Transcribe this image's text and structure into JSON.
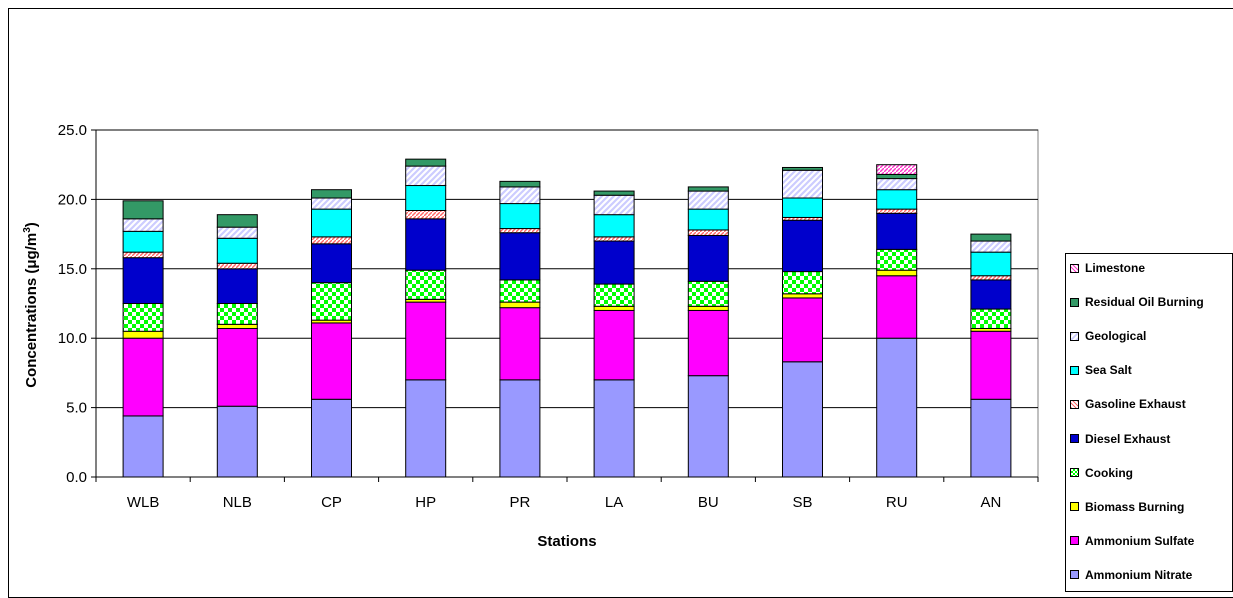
{
  "chart_data": {
    "type": "bar",
    "stacked": true,
    "xlabel": "Stations",
    "ylabel_main": "Concentrations (μg/m",
    "ylabel_sup": "3",
    "ylabel_close": ")",
    "ylim": [
      0,
      25
    ],
    "yticks": [
      "0.0",
      "5.0",
      "10.0",
      "15.0",
      "20.0",
      "25.0"
    ],
    "grid": true,
    "legend_position": "right",
    "categories": [
      "WLB",
      "NLB",
      "CP",
      "HP",
      "PR",
      "LA",
      "BU",
      "SB",
      "RU",
      "AN"
    ],
    "series": [
      {
        "name": "Ammonium Nitrate",
        "color": "#9999ff",
        "pattern": "solid",
        "values": [
          4.4,
          5.1,
          5.6,
          7.0,
          7.0,
          7.0,
          7.3,
          8.3,
          10.0,
          5.6
        ]
      },
      {
        "name": "Ammonium Sulfate",
        "color": "#ff00ff",
        "pattern": "solid",
        "values": [
          5.6,
          5.6,
          5.5,
          5.6,
          5.2,
          5.0,
          4.7,
          4.6,
          4.5,
          4.9
        ]
      },
      {
        "name": "Biomass Burning",
        "color": "#ffff00",
        "pattern": "solid",
        "values": [
          0.5,
          0.3,
          0.2,
          0.2,
          0.4,
          0.3,
          0.3,
          0.3,
          0.4,
          0.2
        ]
      },
      {
        "name": "Cooking",
        "color": "#00ff00",
        "pattern": "checker",
        "values": [
          2.0,
          1.5,
          2.7,
          2.1,
          1.6,
          1.6,
          1.8,
          1.6,
          1.5,
          1.4
        ]
      },
      {
        "name": "Diesel Exhaust",
        "color": "#0000cc",
        "pattern": "solid",
        "values": [
          3.3,
          2.5,
          2.8,
          3.7,
          3.4,
          3.1,
          3.3,
          3.7,
          2.6,
          2.1
        ]
      },
      {
        "name": "Gasoline Exhaust",
        "color": "#ff9999",
        "pattern": "diagonal",
        "values": [
          0.4,
          0.4,
          0.5,
          0.6,
          0.3,
          0.3,
          0.4,
          0.2,
          0.3,
          0.3
        ]
      },
      {
        "name": "Sea Salt",
        "color": "#00ffff",
        "pattern": "solid",
        "values": [
          1.5,
          1.8,
          2.0,
          1.8,
          1.8,
          1.6,
          1.5,
          1.4,
          1.4,
          1.7
        ]
      },
      {
        "name": "Geological",
        "color": "#ccccff",
        "pattern": "hatch",
        "values": [
          0.9,
          0.8,
          0.8,
          1.4,
          1.2,
          1.4,
          1.3,
          2.0,
          0.8,
          0.8
        ]
      },
      {
        "name": "Residual Oil  Burning",
        "color": "#339966",
        "pattern": "solid",
        "values": [
          1.3,
          0.9,
          0.6,
          0.5,
          0.4,
          0.3,
          0.3,
          0.2,
          0.3,
          0.5
        ]
      },
      {
        "name": "Limestone",
        "color": "#ff66cc",
        "pattern": "diagonal",
        "values": [
          0.0,
          0.0,
          0.0,
          0.0,
          0.0,
          0.0,
          0.0,
          0.0,
          0.7,
          0.0
        ]
      }
    ]
  }
}
